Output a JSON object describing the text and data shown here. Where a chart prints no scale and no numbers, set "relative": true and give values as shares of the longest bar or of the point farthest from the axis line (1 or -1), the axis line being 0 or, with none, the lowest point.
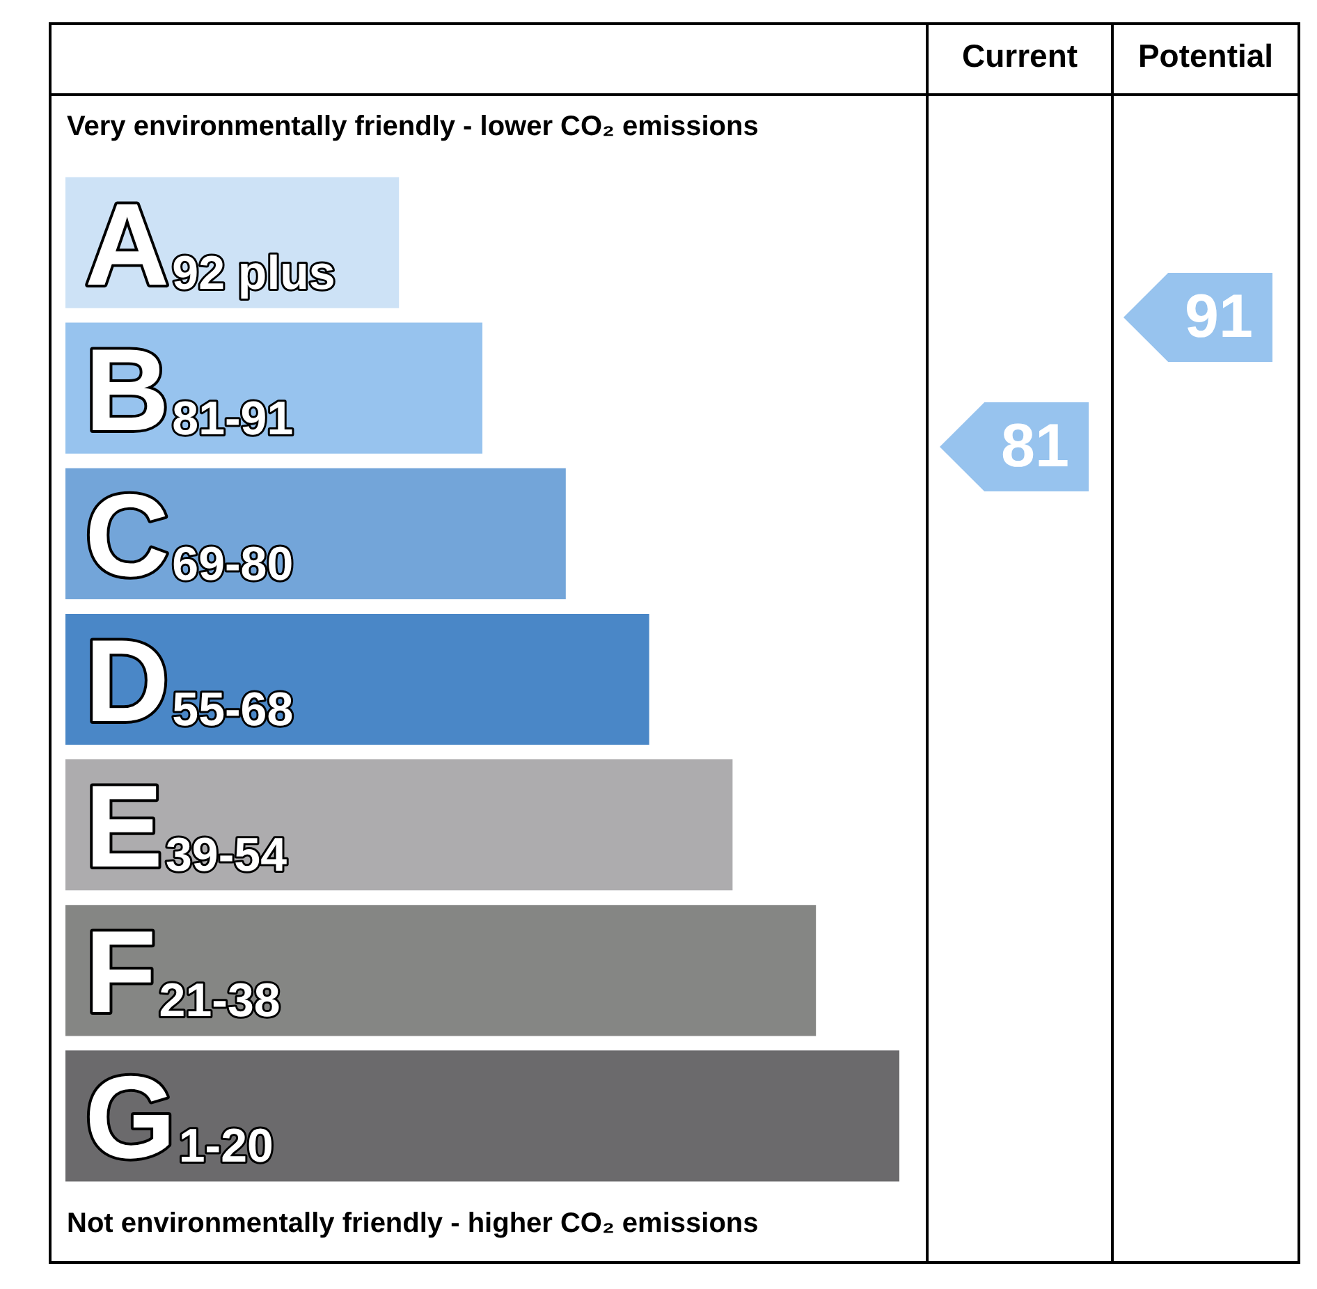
{
  "chart_data": {
    "type": "bar",
    "orientation": "horizontal",
    "relative": true,
    "subtitle": "Very environmentally friendly - lower CO₂ emissions",
    "annotations": [
      "Not environmentally friendly - higher CO₂ emissions",
      "Current",
      "Potential",
      "81",
      "91",
      {
        "text": "92 plus",
        "y": "A"
      },
      {
        "text": "81-91",
        "y": "B"
      },
      {
        "text": "69-80",
        "y": "C"
      },
      {
        "text": "55-68",
        "y": "D"
      },
      {
        "text": "39-54",
        "y": "E"
      },
      {
        "text": "21-38",
        "y": "F"
      },
      {
        "text": "1-20",
        "y": "G"
      }
    ],
    "categories": [
      "A",
      "B",
      "C",
      "D",
      "E",
      "F",
      "G"
    ],
    "values": [
      0.4,
      0.5,
      0.6,
      0.7,
      0.8,
      0.9,
      1
    ],
    "colors": [
      "#cde2f6",
      "#97c3ee",
      "#73a5d9",
      "#4a87c7",
      "#adacae",
      "#858684",
      "#6b6a6c"
    ]
  }
}
